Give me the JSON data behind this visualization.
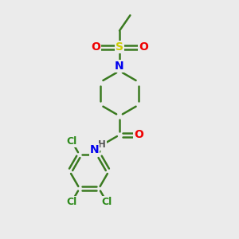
{
  "bg_color": "#ebebeb",
  "bond_color": "#3a7a20",
  "bond_width": 1.8,
  "atom_colors": {
    "C": "#000000",
    "N": "#0000ee",
    "O": "#ee0000",
    "S": "#cccc00",
    "Cl": "#2d8a1b",
    "H": "#555555"
  },
  "figsize": [
    3.0,
    3.0
  ],
  "dpi": 100
}
